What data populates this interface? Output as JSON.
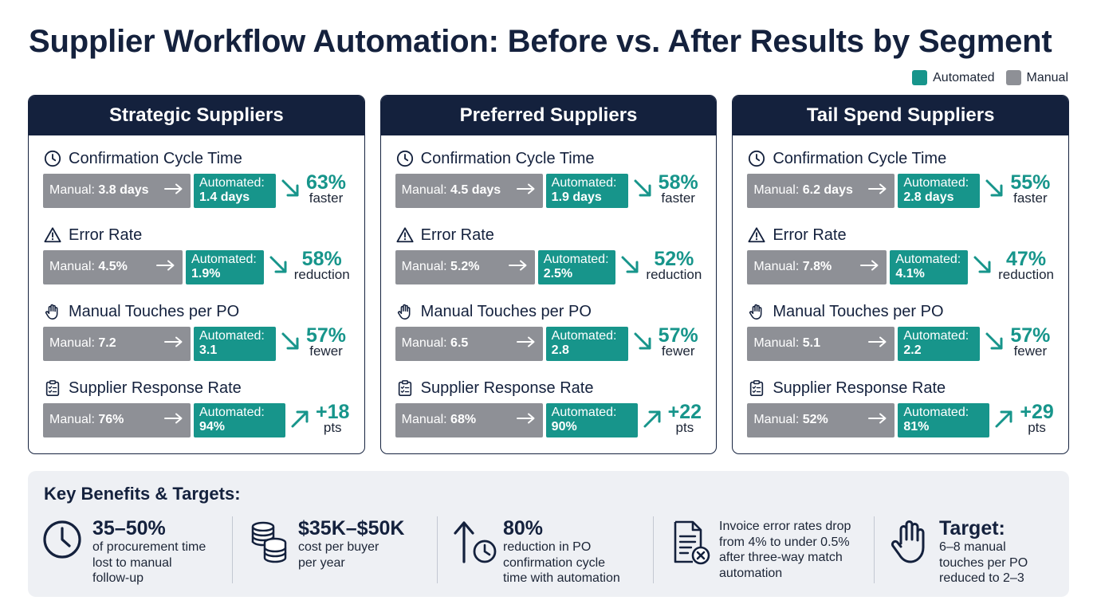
{
  "title": "Supplier Workflow Automation: Before vs. After Results by Segment",
  "legend": [
    {
      "label": "Automated",
      "color": "#17958b"
    },
    {
      "label": "Manual",
      "color": "#8e9096"
    }
  ],
  "segments": [
    {
      "name": "Strategic Suppliers",
      "metrics": [
        {
          "icon": "clock-icon",
          "label": "Confirmation Cycle Time",
          "manual_prefix": "Manual:",
          "manual_value": "3.8 days",
          "auto_prefix": "Automated:",
          "auto_value": "1.4 days",
          "trend": "down",
          "change": "63%",
          "change_label": "faster"
        },
        {
          "icon": "warning-icon",
          "label": "Error Rate",
          "manual_prefix": "Manual:",
          "manual_value": "4.5%",
          "auto_prefix": "Automated:",
          "auto_value": "1.9%",
          "trend": "down",
          "change": "58%",
          "change_label": "reduction"
        },
        {
          "icon": "hand-icon",
          "label": "Manual Touches per PO",
          "manual_prefix": "Manual:",
          "manual_value": "7.2",
          "auto_prefix": "Automated:",
          "auto_value": "3.1",
          "trend": "down",
          "change": "57%",
          "change_label": "fewer"
        },
        {
          "icon": "clipboard-icon",
          "label": "Supplier Response Rate",
          "manual_prefix": "Manual:",
          "manual_value": "76%",
          "auto_prefix": "Automated:",
          "auto_value": "94%",
          "trend": "up",
          "change": "+18",
          "change_label": "pts"
        }
      ]
    },
    {
      "name": "Preferred Suppliers",
      "metrics": [
        {
          "icon": "clock-icon",
          "label": "Confirmation Cycle Time",
          "manual_prefix": "Manual:",
          "manual_value": "4.5 days",
          "auto_prefix": "Automated:",
          "auto_value": "1.9 days",
          "trend": "down",
          "change": "58%",
          "change_label": "faster"
        },
        {
          "icon": "warning-icon",
          "label": "Error Rate",
          "manual_prefix": "Manual:",
          "manual_value": "5.2%",
          "auto_prefix": "Automated:",
          "auto_value": "2.5%",
          "trend": "down",
          "change": "52%",
          "change_label": "reduction"
        },
        {
          "icon": "hand-icon",
          "label": "Manual Touches per PO",
          "manual_prefix": "Manual:",
          "manual_value": "6.5",
          "auto_prefix": "Automated:",
          "auto_value": "2.8",
          "trend": "down",
          "change": "57%",
          "change_label": "fewer"
        },
        {
          "icon": "clipboard-icon",
          "label": "Supplier Response Rate",
          "manual_prefix": "Manual:",
          "manual_value": "68%",
          "auto_prefix": "Automated:",
          "auto_value": "90%",
          "trend": "up",
          "change": "+22",
          "change_label": "pts"
        }
      ]
    },
    {
      "name": "Tail Spend Suppliers",
      "metrics": [
        {
          "icon": "clock-icon",
          "label": "Confirmation Cycle Time",
          "manual_prefix": "Manual:",
          "manual_value": "6.2 days",
          "auto_prefix": "Automated:",
          "auto_value": "2.8 days",
          "trend": "down",
          "change": "55%",
          "change_label": "faster"
        },
        {
          "icon": "warning-icon",
          "label": "Error Rate",
          "manual_prefix": "Manual:",
          "manual_value": "7.8%",
          "auto_prefix": "Automated:",
          "auto_value": "4.1%",
          "trend": "down",
          "change": "47%",
          "change_label": "reduction"
        },
        {
          "icon": "hand-icon",
          "label": "Manual Touches per PO",
          "manual_prefix": "Manual:",
          "manual_value": "5.1",
          "auto_prefix": "Automated:",
          "auto_value": "2.2",
          "trend": "down",
          "change": "57%",
          "change_label": "fewer"
        },
        {
          "icon": "clipboard-icon",
          "label": "Supplier Response Rate",
          "manual_prefix": "Manual:",
          "manual_value": "52%",
          "auto_prefix": "Automated:",
          "auto_value": "81%",
          "trend": "up",
          "change": "+29",
          "change_label": "pts"
        }
      ]
    }
  ],
  "benefits": {
    "title": "Key Benefits & Targets:",
    "items": [
      {
        "icon": "clock-icon",
        "value": "35–50%",
        "description": "of procurement time\nlost to manual\nfollow-up"
      },
      {
        "icon": "coins-icon",
        "value": "$35K–$50K",
        "description": "cost per buyer\nper year"
      },
      {
        "icon": "cycle-time-icon",
        "value": "80%",
        "description": "reduction in PO\nconfirmation cycle\ntime with automation"
      },
      {
        "icon": "invoice-error-icon",
        "value": "",
        "description": "Invoice error rates drop\nfrom 4% to under 0.5%\nafter three-way match\nautomation"
      },
      {
        "icon": "hand-icon",
        "value": "Target:",
        "description": "6–8 manual\ntouches per PO\nreduced to 2–3"
      }
    ]
  }
}
